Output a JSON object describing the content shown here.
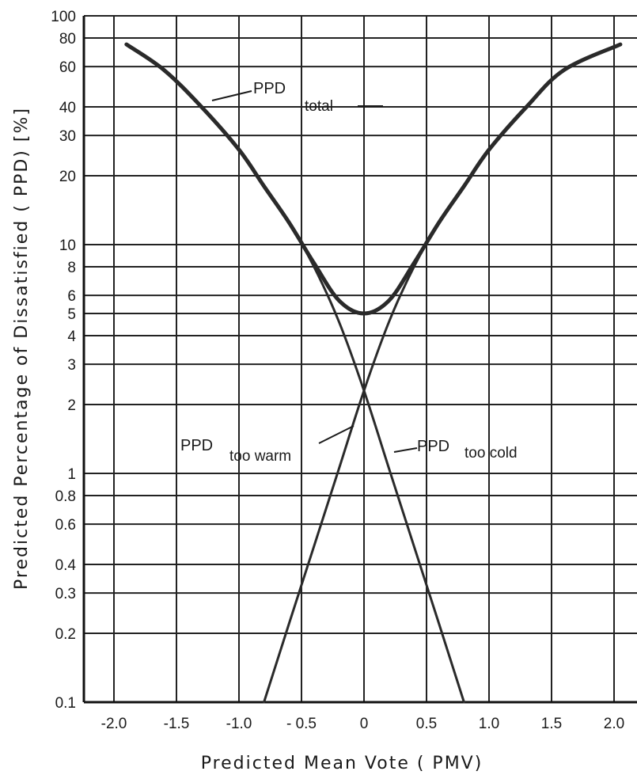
{
  "chart_data": {
    "type": "line",
    "xlabel": "Predicted Mean Vote  ( PMV)",
    "ylabel": "Predicted Percentage of Dissatisfied ( PPD) [%]",
    "x_scale": "linear",
    "y_scale": "log",
    "xlim": [
      -2.3,
      2.15
    ],
    "ylim": [
      0.1,
      100
    ],
    "grid": true,
    "x_ticks": [
      -2.0,
      -1.5,
      -1.0,
      -0.5,
      0,
      0.5,
      1.0,
      1.5,
      2.0
    ],
    "x_tick_labels": [
      "-2.0",
      "-1.5",
      "-1.0",
      "- 0.5",
      "0",
      "0.5",
      "1.0",
      "1.5",
      "2.0"
    ],
    "y_ticks": [
      0.1,
      0.2,
      0.3,
      0.4,
      0.6,
      0.8,
      1,
      2,
      3,
      4,
      5,
      6,
      8,
      10,
      20,
      30,
      40,
      60,
      80,
      100
    ],
    "y_tick_labels": [
      "0.1",
      "0.2",
      "0.3",
      "0.4",
      "0.6",
      "0.8",
      "1",
      "2",
      "3",
      "4",
      "5",
      "6",
      "8",
      "10",
      "20",
      "30",
      "40",
      "60",
      "80",
      "100"
    ],
    "series": [
      {
        "x": [
          -1.9,
          -1.6,
          -1.3,
          -1.0,
          -0.8,
          -0.6,
          -0.4,
          -0.2,
          0.0,
          0.2,
          0.4,
          0.6,
          0.8,
          1.0,
          1.3,
          1.6,
          2.05
        ],
        "values": [
          75,
          58,
          40,
          26,
          18,
          12.5,
          8.3,
          5.7,
          5.0,
          5.7,
          8.3,
          12.5,
          18,
          26,
          40,
          58,
          75
        ]
      },
      {
        "x": [
          -0.8,
          -0.6,
          -0.4,
          -0.2,
          0.0,
          0.2,
          0.4,
          0.6,
          0.8,
          1.0,
          1.3,
          1.6,
          2.05
        ],
        "values": [
          0.1,
          0.22,
          0.48,
          1.05,
          2.3,
          4.6,
          8.0,
          12.5,
          18,
          26,
          40,
          58,
          75
        ]
      },
      {
        "x": [
          -1.9,
          -1.6,
          -1.3,
          -1.0,
          -0.8,
          -0.6,
          -0.4,
          -0.2,
          0.0,
          0.2,
          0.4,
          0.6,
          0.8
        ],
        "values": [
          75,
          58,
          40,
          26,
          18,
          12.5,
          8.0,
          4.6,
          2.3,
          1.05,
          0.48,
          0.22,
          0.1
        ]
      }
    ],
    "annotations": [
      {
        "text": "PPD",
        "sub": "total"
      },
      {
        "text": "PPD",
        "sub": "too warm"
      },
      {
        "text": "PPD",
        "sub": "too cold"
      }
    ]
  }
}
